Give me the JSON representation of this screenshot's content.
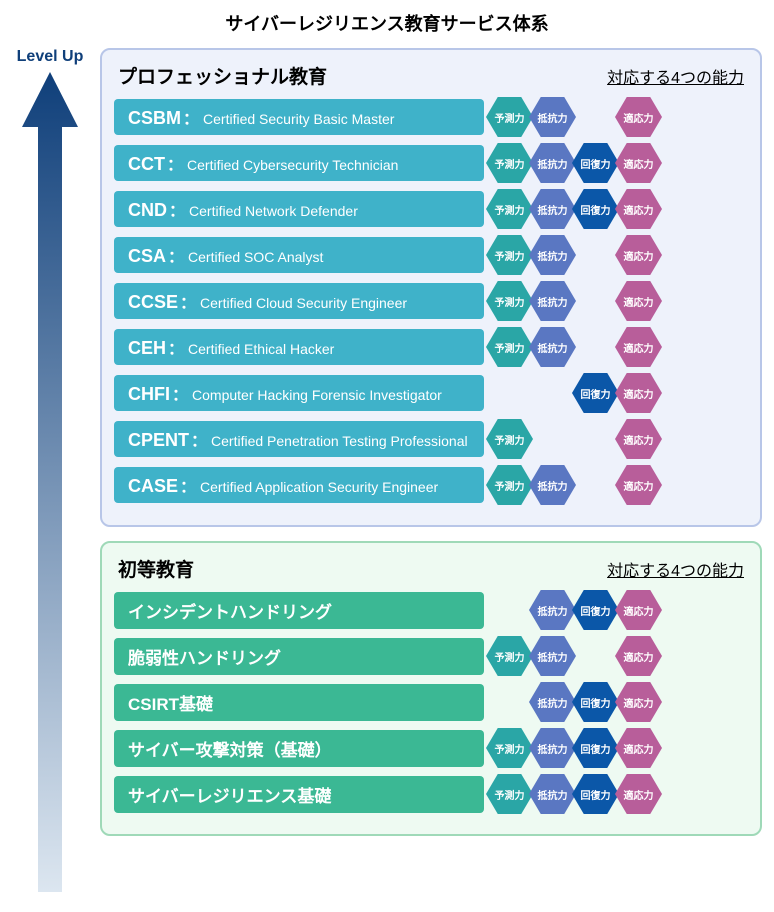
{
  "title": "サイバーレジリエンス教育サービス体系",
  "title_fontsize": 18,
  "level_up_label": "Level Up",
  "level_up_color": "#0f3f7a",
  "arrow": {
    "fill_top": "#0f3f7a",
    "fill_bottom": "#dce6f0"
  },
  "capabilities_header": "対応する4つの能力",
  "capabilities": [
    {
      "key": "predict",
      "label": "予測力",
      "color": "#2aa6a6"
    },
    {
      "key": "resist",
      "label": "抵抗力",
      "color": "#5a77c2"
    },
    {
      "key": "recover",
      "label": "回復力",
      "color": "#0b57a8"
    },
    {
      "key": "adapt",
      "label": "適応力",
      "color": "#b85e9a"
    }
  ],
  "panels": [
    {
      "title": "プロフェッショナル教育",
      "title_fontsize": 19,
      "border_color": "#b8c6e8",
      "bg_color": "#eef2fb",
      "course_bg": "#3fb2c9",
      "code_fontsize": 18,
      "rows": [
        {
          "code": "CSBM",
          "sep": "：",
          "name": "Certified Security Basic Master",
          "caps": [
            "predict",
            "resist",
            "adapt"
          ]
        },
        {
          "code": "CCT",
          "sep": "：",
          "name": "Certified Cybersecurity Technician",
          "caps": [
            "predict",
            "resist",
            "recover",
            "adapt"
          ]
        },
        {
          "code": "CND",
          "sep": "：",
          "name": "Certified Network Defender",
          "caps": [
            "predict",
            "resist",
            "recover",
            "adapt"
          ]
        },
        {
          "code": "CSA",
          "sep": "：",
          "name": "Certified SOC Analyst",
          "caps": [
            "predict",
            "resist",
            "adapt"
          ]
        },
        {
          "code": "CCSE",
          "sep": "：",
          "name": "Certified Cloud Security Engineer",
          "caps": [
            "predict",
            "resist",
            "adapt"
          ]
        },
        {
          "code": "CEH",
          "sep": "：",
          "name": "Certified Ethical Hacker",
          "caps": [
            "predict",
            "resist",
            "adapt"
          ]
        },
        {
          "code": "CHFI",
          "sep": "：",
          "name": "Computer Hacking Forensic Investigator",
          "caps": [
            "recover",
            "adapt"
          ]
        },
        {
          "code": "CPENT",
          "sep": "：",
          "name": "Certified Penetration Testing Professional",
          "caps": [
            "predict",
            "adapt"
          ]
        },
        {
          "code": "CASE",
          "sep": "：",
          "name": "Certified Application Security Engineer",
          "caps": [
            "predict",
            "resist",
            "adapt"
          ]
        }
      ]
    },
    {
      "title": "初等教育",
      "title_fontsize": 19,
      "border_color": "#9fd9b8",
      "bg_color": "#eefaf2",
      "course_bg": "#3bb894",
      "code_fontsize": 17,
      "rows": [
        {
          "code": "インシデントハンドリング",
          "sep": "",
          "name": "",
          "caps": [
            "resist",
            "recover",
            "adapt"
          ]
        },
        {
          "code": "脆弱性ハンドリング",
          "sep": "",
          "name": "",
          "caps": [
            "predict",
            "resist",
            "adapt"
          ]
        },
        {
          "code": "CSIRT基礎",
          "sep": "",
          "name": "",
          "caps": [
            "resist",
            "recover",
            "adapt"
          ]
        },
        {
          "code": "サイバー攻撃対策（基礎）",
          "sep": "",
          "name": "",
          "caps": [
            "predict",
            "resist",
            "recover",
            "adapt"
          ]
        },
        {
          "code": "サイバーレジリエンス基礎",
          "sep": "",
          "name": "",
          "caps": [
            "predict",
            "resist",
            "recover",
            "adapt"
          ]
        }
      ]
    }
  ]
}
